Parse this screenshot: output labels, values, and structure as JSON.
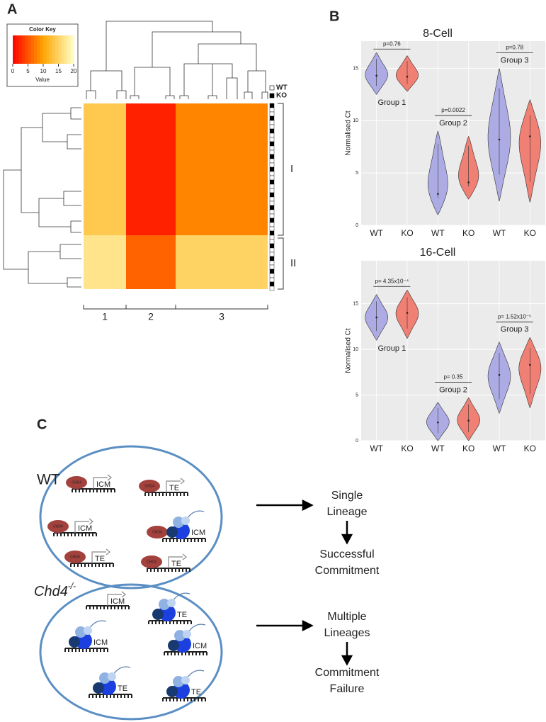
{
  "chart_data": [
    {
      "type": "heatmap",
      "panel": "A",
      "color_key": {
        "title": "Color Key",
        "label": "Value",
        "lim": [
          0,
          20
        ],
        "ticks": [
          0,
          5,
          10,
          15,
          20
        ]
      },
      "legend": [
        "WT",
        "KO"
      ],
      "row_clusters": [
        "I",
        "II"
      ],
      "col_groups": [
        "1",
        "2",
        "3"
      ],
      "values": [
        [
          14,
          2,
          8
        ],
        [
          17,
          6,
          15
        ]
      ]
    },
    {
      "type": "violin",
      "panel": "B",
      "title": "8-Cell",
      "ylabel": "Normalised Ct",
      "ylim": [
        0,
        17.6
      ],
      "yticks": [
        0,
        5,
        10,
        15
      ],
      "categories": [
        "WT",
        "KO",
        "WT",
        "KO",
        "WT",
        "KO"
      ],
      "colors": [
        "#adabe4",
        "#f07f74",
        "#adabe4",
        "#f07f74",
        "#adabe4",
        "#f07f74"
      ],
      "label_colors": [
        "#7466c4",
        "#e5483b",
        "#7466c4",
        "#e5483b",
        "#7466c4",
        "#e5483b"
      ],
      "min": [
        12.5,
        12.8,
        1,
        2.5,
        2.3,
        2.2
      ],
      "max": [
        16.5,
        16.2,
        9,
        8.5,
        15,
        12
      ],
      "median": [
        14.3,
        14.2,
        3,
        4.1,
        8.2,
        8.5
      ],
      "groups": [
        "Group 1",
        "Group 2",
        "Group 3"
      ],
      "pvalues": [
        "p=0.76",
        "p=0.0022",
        "p=0.78"
      ]
    },
    {
      "type": "violin",
      "title": "16-Cell",
      "ylabel": "Normalised Ct",
      "ylim": [
        0,
        19.7
      ],
      "yticks": [
        0,
        5,
        10,
        15
      ],
      "categories": [
        "WT",
        "KO",
        "WT",
        "KO",
        "WT",
        "KO"
      ],
      "colors": [
        "#adabe4",
        "#f07f74",
        "#adabe4",
        "#f07f74",
        "#adabe4",
        "#f07f74"
      ],
      "label_colors": [
        "#7466c4",
        "#e5483b",
        "#7466c4",
        "#e5483b",
        "#7466c4",
        "#e5483b"
      ],
      "min": [
        11,
        11.2,
        0,
        0,
        3,
        3.6
      ],
      "max": [
        16,
        16.5,
        4.2,
        4.7,
        10.8,
        11.3
      ],
      "median": [
        13.5,
        14,
        2,
        2.2,
        7.2,
        8.3
      ],
      "groups": [
        "Group 1",
        "Group 2",
        "Group 3"
      ],
      "pvalues": [
        "p= 4.35x10⁻⁴",
        "p= 0.35",
        "p= 1.52x10⁻⁵"
      ]
    }
  ],
  "diagram": {
    "panel": "C",
    "wt": {
      "label": "WT",
      "genes": [
        {
          "protein": "CHD4",
          "target": "ICM"
        },
        {
          "protein": "CHD4",
          "target": "TE"
        },
        {
          "protein": "CHD4",
          "target": "ICM"
        },
        {
          "protein": "CHD4",
          "target": "ICM"
        },
        {
          "protein": "CHD4",
          "target": "TE"
        },
        {
          "protein": "CHD4",
          "target": "TE"
        }
      ]
    },
    "ko": {
      "label": "Chd4",
      "sup": "-/-",
      "genes": [
        {
          "target": "ICM"
        },
        {
          "target": "TE"
        },
        {
          "target": "ICM"
        },
        {
          "target": "ICM"
        },
        {
          "target": "TE"
        },
        {
          "target": "TE"
        }
      ]
    },
    "wt_outcome": [
      "Single",
      "Lineage",
      "Successful",
      "Commitment"
    ],
    "ko_outcome": [
      "Multiple",
      "Lineages",
      "Commitment",
      "Failure"
    ]
  }
}
